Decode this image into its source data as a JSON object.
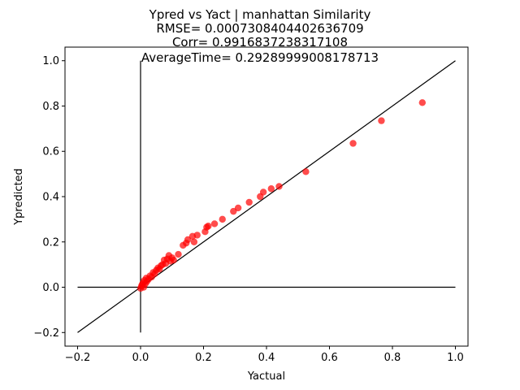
{
  "chart_data": {
    "type": "scatter",
    "title_lines": [
      "Ypred vs Yact | manhattan Similarity",
      "RMSE= 0.0007308404402636709",
      "Corr= 0.9916837238317108",
      "AverageTime= 0.29289999008178713"
    ],
    "xlabel": "Yactual",
    "ylabel": "Ypredicted",
    "xlim": [
      -0.24,
      1.04
    ],
    "ylim": [
      -0.26,
      1.06
    ],
    "x_ticks": [
      -0.2,
      0.0,
      0.2,
      0.4,
      0.6,
      0.8,
      1.0
    ],
    "y_ticks": [
      -0.2,
      0.0,
      0.2,
      0.4,
      0.6,
      0.8,
      1.0
    ],
    "x_tick_labels": [
      "−0.2",
      "0.0",
      "0.2",
      "0.4",
      "0.6",
      "0.8",
      "1.0"
    ],
    "y_tick_labels": [
      "−0.2",
      "0.0",
      "0.2",
      "0.4",
      "0.6",
      "0.8",
      "1.0"
    ],
    "grid": false,
    "marker_color": "#ff0000",
    "line_color": "#000000",
    "reference_lines": [
      {
        "x": [
          -0.2,
          1.0
        ],
        "y": [
          -0.2,
          1.0
        ]
      },
      {
        "x": [
          -0.2,
          1.0
        ],
        "y": [
          0.0,
          0.0
        ]
      },
      {
        "x": [
          0.0,
          0.0
        ],
        "y": [
          -0.2,
          1.0
        ]
      }
    ],
    "points": [
      {
        "x": 0.0,
        "y": -0.005
      },
      {
        "x": 0.003,
        "y": 0.005
      },
      {
        "x": 0.005,
        "y": 0.012
      },
      {
        "x": 0.008,
        "y": 0.02
      },
      {
        "x": 0.01,
        "y": 0.0
      },
      {
        "x": 0.012,
        "y": 0.03
      },
      {
        "x": 0.015,
        "y": 0.015
      },
      {
        "x": 0.018,
        "y": 0.04
      },
      {
        "x": 0.02,
        "y": 0.025
      },
      {
        "x": 0.025,
        "y": 0.035
      },
      {
        "x": 0.03,
        "y": 0.05
      },
      {
        "x": 0.035,
        "y": 0.045
      },
      {
        "x": 0.04,
        "y": 0.065
      },
      {
        "x": 0.045,
        "y": 0.06
      },
      {
        "x": 0.05,
        "y": 0.075
      },
      {
        "x": 0.055,
        "y": 0.085
      },
      {
        "x": 0.06,
        "y": 0.08
      },
      {
        "x": 0.065,
        "y": 0.095
      },
      {
        "x": 0.07,
        "y": 0.1
      },
      {
        "x": 0.075,
        "y": 0.12
      },
      {
        "x": 0.08,
        "y": 0.105
      },
      {
        "x": 0.085,
        "y": 0.125
      },
      {
        "x": 0.09,
        "y": 0.14
      },
      {
        "x": 0.095,
        "y": 0.115
      },
      {
        "x": 0.1,
        "y": 0.13
      },
      {
        "x": 0.105,
        "y": 0.12
      },
      {
        "x": 0.12,
        "y": 0.145
      },
      {
        "x": 0.135,
        "y": 0.185
      },
      {
        "x": 0.145,
        "y": 0.195
      },
      {
        "x": 0.15,
        "y": 0.21
      },
      {
        "x": 0.165,
        "y": 0.225
      },
      {
        "x": 0.17,
        "y": 0.2
      },
      {
        "x": 0.18,
        "y": 0.23
      },
      {
        "x": 0.205,
        "y": 0.245
      },
      {
        "x": 0.21,
        "y": 0.265
      },
      {
        "x": 0.215,
        "y": 0.27
      },
      {
        "x": 0.235,
        "y": 0.28
      },
      {
        "x": 0.26,
        "y": 0.3
      },
      {
        "x": 0.295,
        "y": 0.335
      },
      {
        "x": 0.31,
        "y": 0.35
      },
      {
        "x": 0.345,
        "y": 0.375
      },
      {
        "x": 0.38,
        "y": 0.4
      },
      {
        "x": 0.39,
        "y": 0.42
      },
      {
        "x": 0.415,
        "y": 0.435
      },
      {
        "x": 0.44,
        "y": 0.445
      },
      {
        "x": 0.525,
        "y": 0.51
      },
      {
        "x": 0.675,
        "y": 0.635
      },
      {
        "x": 0.765,
        "y": 0.735
      },
      {
        "x": 0.895,
        "y": 0.815
      }
    ]
  }
}
